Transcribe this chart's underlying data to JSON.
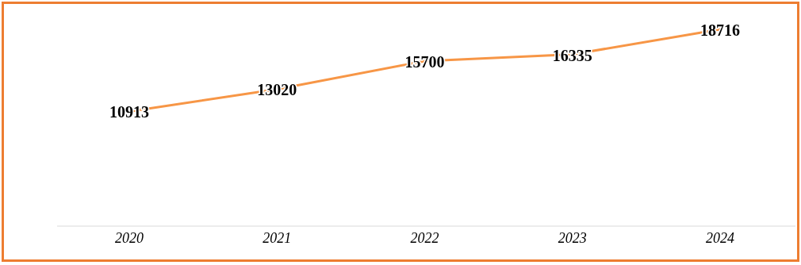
{
  "chart_data": {
    "type": "line",
    "categories": [
      "2020",
      "2021",
      "2022",
      "2023",
      "2024"
    ],
    "values": [
      10913,
      13020,
      15700,
      16335,
      18716
    ],
    "color": "#f79646",
    "data_labels": true,
    "grid": false,
    "legend": false,
    "marker": "none",
    "line_style": "solid",
    "tick_labels": "x"
  }
}
